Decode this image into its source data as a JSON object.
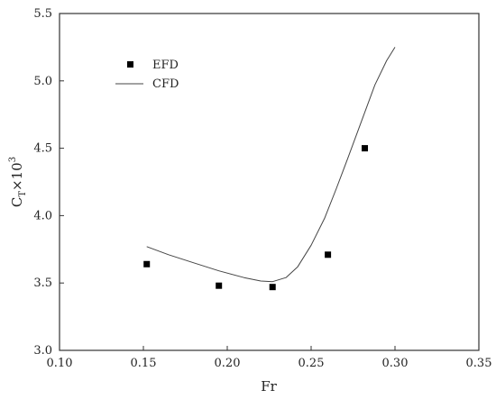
{
  "chart_data": {
    "type": "scatter",
    "title": "",
    "xlabel": "Fr",
    "ylabel_main": "C",
    "ylabel_sub": "T",
    "ylabel_rest": "×10",
    "ylabel_sup": "3",
    "xlim": [
      0.1,
      0.35
    ],
    "ylim": [
      3.0,
      5.5
    ],
    "xticks": [
      "0.10",
      "0.15",
      "0.20",
      "0.25",
      "0.30",
      "0.35"
    ],
    "yticks": [
      "3.0",
      "3.5",
      "4.0",
      "4.5",
      "5.0",
      "5.5"
    ],
    "grid": false,
    "legend_position": "top-left",
    "series": [
      {
        "name": "EFD",
        "style": "marker-square",
        "color": "#000000",
        "x": [
          0.152,
          0.195,
          0.227,
          0.26,
          0.282
        ],
        "y": [
          3.64,
          3.48,
          3.47,
          3.71,
          4.5
        ]
      },
      {
        "name": "CFD",
        "style": "line",
        "color": "#444444",
        "x": [
          0.152,
          0.165,
          0.18,
          0.195,
          0.21,
          0.22,
          0.227,
          0.235,
          0.242,
          0.25,
          0.258,
          0.265,
          0.272,
          0.28,
          0.288,
          0.295,
          0.3
        ],
        "y": [
          3.77,
          3.71,
          3.65,
          3.59,
          3.54,
          3.515,
          3.51,
          3.54,
          3.62,
          3.78,
          3.98,
          4.2,
          4.43,
          4.7,
          4.97,
          5.15,
          5.25
        ]
      }
    ]
  }
}
